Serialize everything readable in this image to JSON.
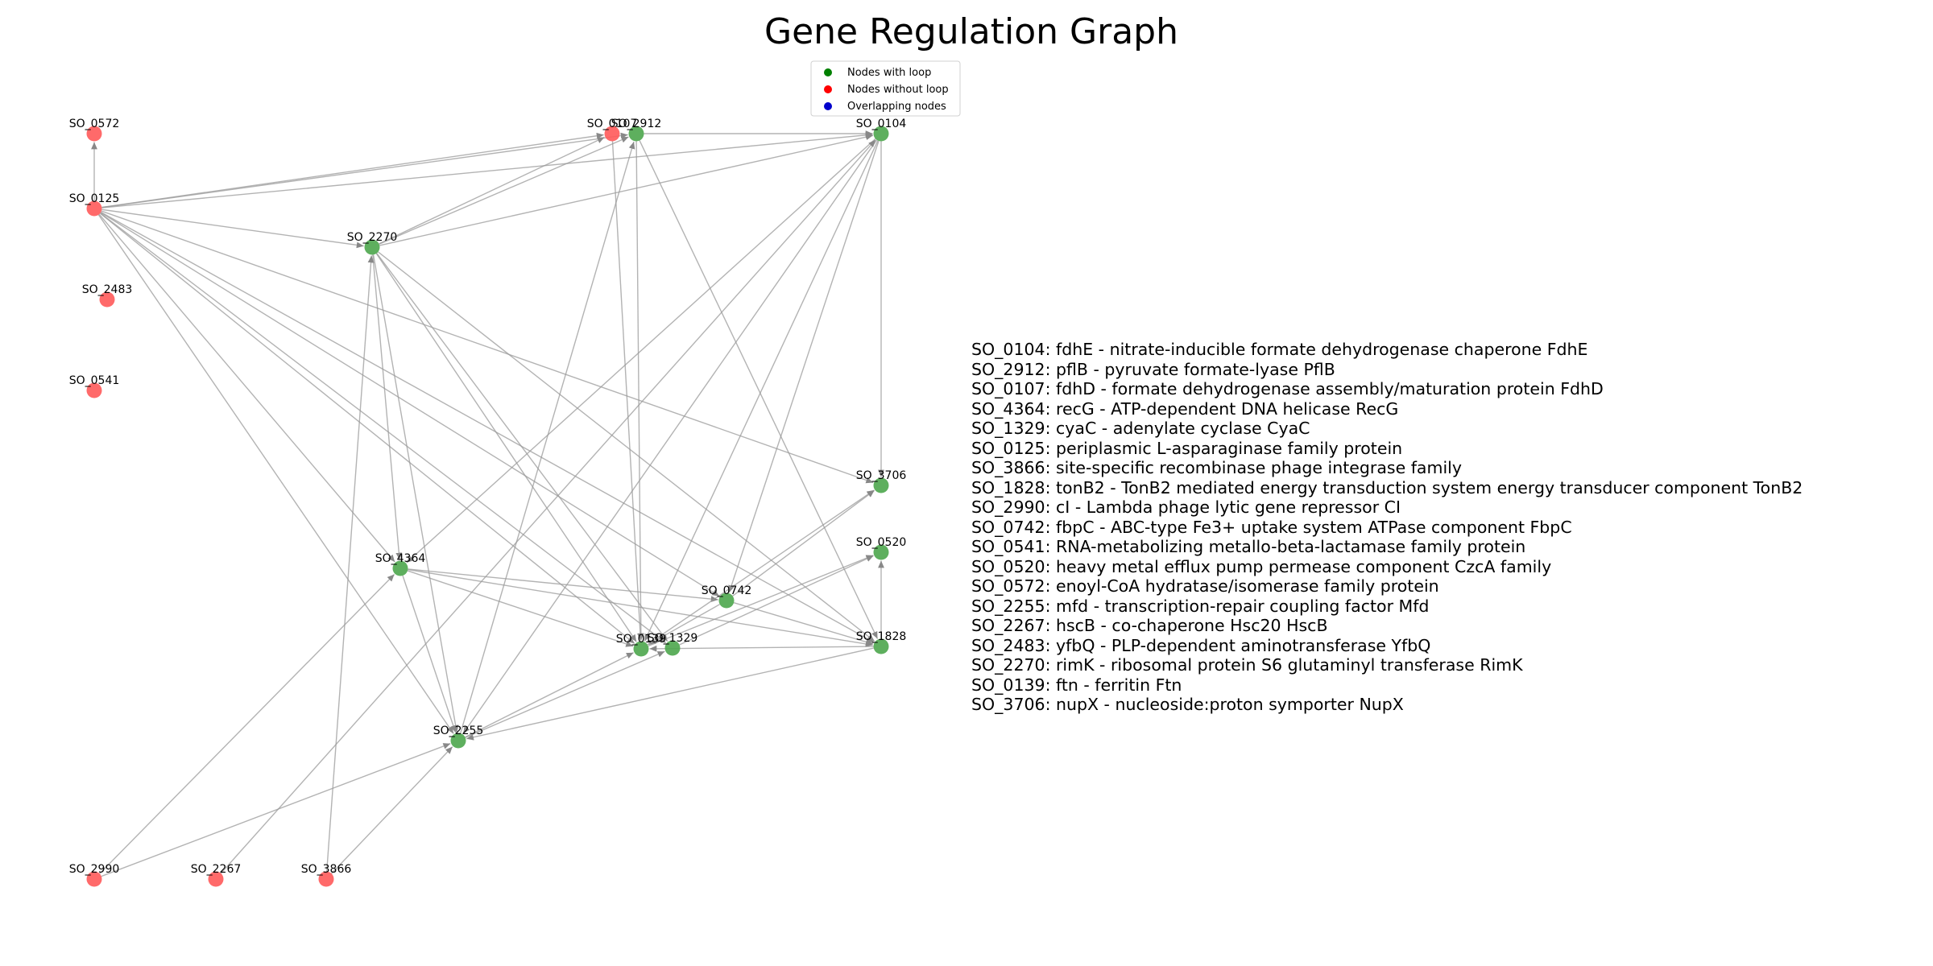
{
  "title": "Gene Regulation Graph",
  "colors": {
    "with_loop": "#4ca64c",
    "without_loop": "#ff5a5a",
    "overlapping": "#0000cc",
    "edge": "#9a9a9a"
  },
  "legend": {
    "items": [
      {
        "label": "Nodes with loop",
        "color": "#008000"
      },
      {
        "label": "Nodes without loop",
        "color": "#ff0000"
      },
      {
        "label": "Overlapping nodes",
        "color": "#0000cc"
      }
    ]
  },
  "nodes": [
    {
      "id": "SO_0104",
      "label": "SO_0104",
      "loop": true
    },
    {
      "id": "SO_2912",
      "label": "SO_2912",
      "loop": true
    },
    {
      "id": "SO_0107",
      "label": "SO_0107",
      "loop": false
    },
    {
      "id": "SO_4364",
      "label": "SO_4364",
      "loop": true
    },
    {
      "id": "SO_1329",
      "label": "SO_1329",
      "loop": true
    },
    {
      "id": "SO_0125",
      "label": "SO_0125",
      "loop": false
    },
    {
      "id": "SO_3866",
      "label": "SO_3866",
      "loop": false
    },
    {
      "id": "SO_1828",
      "label": "SO_1828",
      "loop": true
    },
    {
      "id": "SO_2990",
      "label": "SO_2990",
      "loop": false
    },
    {
      "id": "SO_0742",
      "label": "SO_0742",
      "loop": true
    },
    {
      "id": "SO_0541",
      "label": "SO_0541",
      "loop": false
    },
    {
      "id": "SO_0520",
      "label": "SO_0520",
      "loop": true
    },
    {
      "id": "SO_0572",
      "label": "SO_0572",
      "loop": false
    },
    {
      "id": "SO_2255",
      "label": "SO_2255",
      "loop": true
    },
    {
      "id": "SO_2267",
      "label": "SO_2267",
      "loop": false
    },
    {
      "id": "SO_2483",
      "label": "SO_2483",
      "loop": false
    },
    {
      "id": "SO_2270",
      "label": "SO_2270",
      "loop": true
    },
    {
      "id": "SO_0139",
      "label": "SO_0139",
      "loop": true
    },
    {
      "id": "SO_3706",
      "label": "SO_3706",
      "loop": true
    }
  ],
  "edges": [
    [
      "SO_0125",
      "SO_0572"
    ],
    [
      "SO_0125",
      "SO_0107"
    ],
    [
      "SO_0125",
      "SO_2912"
    ],
    [
      "SO_0125",
      "SO_0104"
    ],
    [
      "SO_0125",
      "SO_2270"
    ],
    [
      "SO_0125",
      "SO_4364"
    ],
    [
      "SO_0125",
      "SO_0742"
    ],
    [
      "SO_0125",
      "SO_0139"
    ],
    [
      "SO_0125",
      "SO_1329"
    ],
    [
      "SO_0125",
      "SO_3706"
    ],
    [
      "SO_0125",
      "SO_1828"
    ],
    [
      "SO_0125",
      "SO_2255"
    ],
    [
      "SO_2270",
      "SO_0107"
    ],
    [
      "SO_2270",
      "SO_2912"
    ],
    [
      "SO_2270",
      "SO_0104"
    ],
    [
      "SO_2270",
      "SO_4364"
    ],
    [
      "SO_2270",
      "SO_0139"
    ],
    [
      "SO_2270",
      "SO_1329"
    ],
    [
      "SO_2270",
      "SO_1828"
    ],
    [
      "SO_2270",
      "SO_2255"
    ],
    [
      "SO_2912",
      "SO_0104"
    ],
    [
      "SO_2912",
      "SO_0139"
    ],
    [
      "SO_2912",
      "SO_1828"
    ],
    [
      "SO_0107",
      "SO_0139"
    ],
    [
      "SO_0104",
      "SO_4364"
    ],
    [
      "SO_0104",
      "SO_0139"
    ],
    [
      "SO_0104",
      "SO_0742"
    ],
    [
      "SO_0104",
      "SO_3706"
    ],
    [
      "SO_0104",
      "SO_2255"
    ],
    [
      "SO_4364",
      "SO_0742"
    ],
    [
      "SO_4364",
      "SO_1828"
    ],
    [
      "SO_4364",
      "SO_0139"
    ],
    [
      "SO_4364",
      "SO_2255"
    ],
    [
      "SO_0742",
      "SO_3706"
    ],
    [
      "SO_0742",
      "SO_1828"
    ],
    [
      "SO_0742",
      "SO_0139"
    ],
    [
      "SO_1329",
      "SO_0520"
    ],
    [
      "SO_0139",
      "SO_3706"
    ],
    [
      "SO_0139",
      "SO_0520"
    ],
    [
      "SO_1828",
      "SO_0139"
    ],
    [
      "SO_1828",
      "SO_0520"
    ],
    [
      "SO_1828",
      "SO_2255"
    ],
    [
      "SO_2255",
      "SO_0139"
    ],
    [
      "SO_2255",
      "SO_1329"
    ],
    [
      "SO_2255",
      "SO_2912"
    ],
    [
      "SO_2990",
      "SO_2255"
    ],
    [
      "SO_2990",
      "SO_4364"
    ],
    [
      "SO_2267",
      "SO_0104"
    ],
    [
      "SO_3866",
      "SO_2255"
    ],
    [
      "SO_3866",
      "SO_2270"
    ]
  ],
  "descriptions": [
    "SO_0104: fdhE - nitrate-inducible formate dehydrogenase chaperone FdhE",
    "SO_2912: pflB - pyruvate formate-lyase PflB",
    "SO_0107: fdhD - formate dehydrogenase assembly/maturation protein FdhD",
    "SO_4364: recG - ATP-dependent DNA helicase RecG",
    "SO_1329: cyaC - adenylate cyclase CyaC",
    "SO_0125: periplasmic L-asparaginase family protein",
    "SO_3866: site-specific recombinase phage integrase family",
    "SO_1828: tonB2 - TonB2 mediated energy transduction system energy transducer component TonB2",
    "SO_2990: cI - Lambda phage lytic gene repressor CI",
    "SO_0742: fbpC - ABC-type Fe3+ uptake system ATPase component FbpC",
    "SO_0541: RNA-metabolizing metallo-beta-lactamase family protein",
    "SO_0520: heavy metal efflux pump permease component CzcA family",
    "SO_0572: enoyl-CoA hydratase/isomerase family protein",
    "SO_2255: mfd - transcription-repair coupling factor Mfd",
    "SO_2267: hscB - co-chaperone Hsc20 HscB",
    "SO_2483: yfbQ - PLP-dependent aminotransferase YfbQ",
    "SO_2270: rimK - ribosomal protein S6 glutaminyl transferase RimK",
    "SO_0139: ftn - ferritin Ftn",
    "SO_3706: nupX - nucleoside:proton symporter NupX"
  ]
}
